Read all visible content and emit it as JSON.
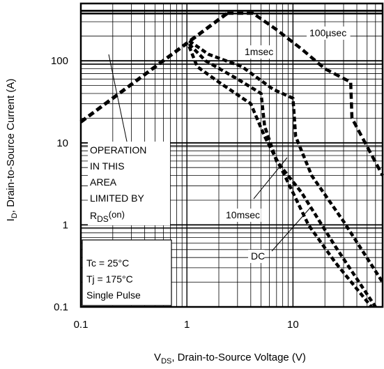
{
  "chart_data": {
    "type": "line",
    "title": "",
    "x_scale": "log",
    "y_scale": "log",
    "xlim": [
      0.1,
      70
    ],
    "ylim": [
      0.1,
      500
    ],
    "grid": true,
    "xlabel": {
      "main": "V",
      "sub": "DS",
      "rest": ", Drain-to-Source Voltage (V)"
    },
    "ylabel": {
      "main": "I",
      "sub": "D",
      "rest": ",  Drain-to-Source Current (A)"
    },
    "x_ticks": [
      {
        "value": 0.1,
        "label": "0.1"
      },
      {
        "value": 1,
        "label": "1"
      },
      {
        "value": 10,
        "label": "10"
      }
    ],
    "y_ticks": [
      {
        "value": 0.1,
        "label": "0.1"
      },
      {
        "value": 1,
        "label": "1"
      },
      {
        "value": 10,
        "label": "10"
      },
      {
        "value": 100,
        "label": "100"
      }
    ],
    "package_limit_current": 400,
    "rds_on_limit": {
      "x": [
        0.1,
        2.4
      ],
      "y": [
        18,
        380
      ]
    },
    "series": [
      {
        "name": "100µsec",
        "x": [
          2.4,
          4.2,
          7,
          12,
          20,
          35,
          36,
          70
        ],
        "y": [
          380,
          380,
          240,
          140,
          80,
          55,
          20,
          4
        ]
      },
      {
        "name": "1msec",
        "x": [
          1.05,
          1.6,
          3.3,
          6.5,
          10,
          10.6,
          15,
          30,
          70
        ],
        "y": [
          175,
          120,
          85,
          45,
          35,
          12,
          4,
          1.1,
          0.2
        ]
      },
      {
        "name": "10msec",
        "x": [
          1.05,
          1.5,
          3,
          5,
          5.4,
          7,
          12,
          25,
          60
        ],
        "y": [
          160,
          100,
          60,
          40,
          16,
          6,
          2.5,
          0.55,
          0.1
        ]
      },
      {
        "name": "DC",
        "x": [
          1.05,
          1.25,
          2,
          4,
          5.4,
          8,
          14,
          25,
          55
        ],
        "y": [
          150,
          85,
          55,
          30,
          12,
          4.5,
          1,
          0.35,
          0.1
        ]
      }
    ],
    "annotations": {
      "operation_area": [
        "OPERATION",
        "IN THIS",
        "AREA",
        "LIMITED BY"
      ],
      "rds_on": {
        "main": "R",
        "sub": "DS",
        "rest": "(on)"
      },
      "label_100us": "100µsec",
      "label_1ms": "1msec",
      "label_10ms": "10msec",
      "label_dc": "DC",
      "conditions": [
        "Tc = 25°C",
        "Tj = 175°C",
        "Single Pulse"
      ]
    },
    "colors": {
      "line": "#000000",
      "grid": "#000000",
      "background": "#ffffff"
    }
  }
}
